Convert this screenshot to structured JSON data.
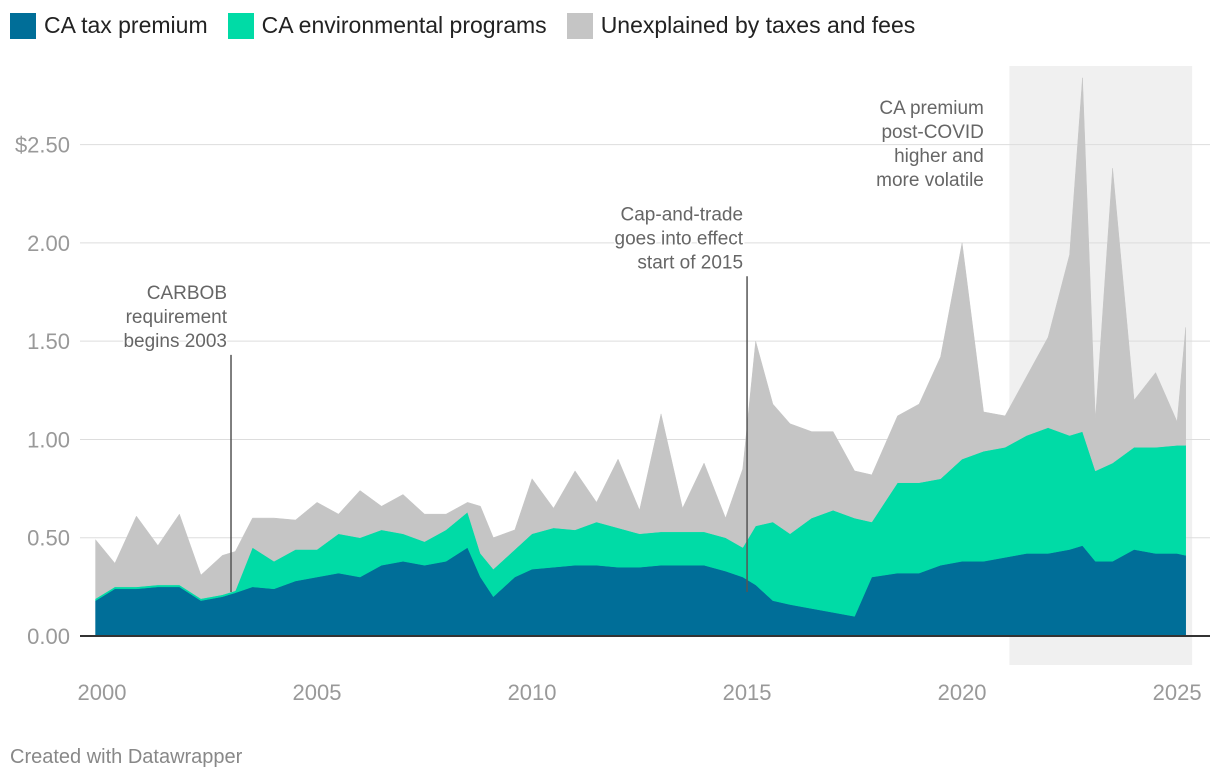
{
  "chart_data": {
    "type": "area",
    "stacked": true,
    "title": "",
    "xlabel": "",
    "ylabel": "",
    "xlim": [
      2000,
      2025.3
    ],
    "ylim": [
      0,
      2.9
    ],
    "x_ticks": [
      {
        "value": 2000,
        "label": "2000"
      },
      {
        "value": 2005,
        "label": "2005"
      },
      {
        "value": 2010,
        "label": "2010"
      },
      {
        "value": 2015,
        "label": "2015"
      },
      {
        "value": 2020,
        "label": "2020"
      },
      {
        "value": 2025,
        "label": "2025"
      }
    ],
    "y_ticks": [
      {
        "value": 0,
        "label": "0.00"
      },
      {
        "value": 0.5,
        "label": "0.50"
      },
      {
        "value": 1.0,
        "label": "1.00"
      },
      {
        "value": 1.5,
        "label": "1.50"
      },
      {
        "value": 2.0,
        "label": "2.00"
      },
      {
        "value": 2.5,
        "label": "$2.50"
      }
    ],
    "legend_position": "top-left",
    "x": [
      1999.85,
      2000.3,
      2000.8,
      2001.3,
      2001.8,
      2002.3,
      2002.8,
      2003.1,
      2003.5,
      2004.0,
      2004.5,
      2005.0,
      2005.5,
      2006.0,
      2006.5,
      2007.0,
      2007.5,
      2008.0,
      2008.5,
      2008.8,
      2009.1,
      2009.6,
      2010.0,
      2010.5,
      2011.0,
      2011.5,
      2012.0,
      2012.5,
      2013.0,
      2013.5,
      2014.0,
      2014.5,
      2014.9,
      2015.2,
      2015.6,
      2016.0,
      2016.5,
      2017.0,
      2017.5,
      2017.9,
      2018.5,
      2019.0,
      2019.5,
      2020.0,
      2020.5,
      2021.0,
      2021.5,
      2022.0,
      2022.5,
      2022.8,
      2023.1,
      2023.5,
      2024.0,
      2024.5,
      2025.0,
      2025.2
    ],
    "series": [
      {
        "name": "CA tax premium",
        "color": "#006e98",
        "values": [
          0.18,
          0.24,
          0.24,
          0.25,
          0.25,
          0.18,
          0.2,
          0.22,
          0.25,
          0.24,
          0.28,
          0.3,
          0.32,
          0.3,
          0.36,
          0.38,
          0.36,
          0.38,
          0.45,
          0.3,
          0.2,
          0.3,
          0.34,
          0.35,
          0.36,
          0.36,
          0.35,
          0.35,
          0.36,
          0.36,
          0.36,
          0.33,
          0.3,
          0.26,
          0.18,
          0.16,
          0.14,
          0.12,
          0.1,
          0.3,
          0.32,
          0.32,
          0.36,
          0.38,
          0.38,
          0.4,
          0.42,
          0.42,
          0.44,
          0.46,
          0.38,
          0.38,
          0.44,
          0.42,
          0.42,
          0.41
        ]
      },
      {
        "name": "CA environmental programs",
        "color": "#00dba6",
        "values": [
          0.01,
          0.01,
          0.01,
          0.01,
          0.01,
          0.01,
          0.01,
          0.01,
          0.2,
          0.14,
          0.16,
          0.14,
          0.2,
          0.2,
          0.18,
          0.14,
          0.12,
          0.16,
          0.18,
          0.12,
          0.14,
          0.14,
          0.18,
          0.2,
          0.18,
          0.22,
          0.2,
          0.17,
          0.17,
          0.17,
          0.17,
          0.17,
          0.15,
          0.3,
          0.4,
          0.36,
          0.46,
          0.52,
          0.5,
          0.28,
          0.46,
          0.46,
          0.44,
          0.52,
          0.56,
          0.56,
          0.6,
          0.64,
          0.58,
          0.58,
          0.46,
          0.5,
          0.52,
          0.54,
          0.55,
          0.56
        ]
      },
      {
        "name": "Unexplained by taxes and fees",
        "color": "#c5c5c5",
        "values": [
          0.3,
          0.12,
          0.36,
          0.2,
          0.36,
          0.12,
          0.2,
          0.2,
          0.15,
          0.22,
          0.15,
          0.24,
          0.1,
          0.24,
          0.12,
          0.2,
          0.14,
          0.08,
          0.05,
          0.24,
          0.16,
          0.1,
          0.28,
          0.1,
          0.3,
          0.1,
          0.35,
          0.12,
          0.6,
          0.12,
          0.35,
          0.1,
          0.4,
          0.94,
          0.6,
          0.56,
          0.44,
          0.4,
          0.24,
          0.24,
          0.34,
          0.4,
          0.62,
          1.1,
          0.2,
          0.16,
          0.3,
          0.46,
          0.92,
          1.8,
          0.26,
          1.5,
          0.24,
          0.38,
          0.12,
          0.6
        ]
      }
    ],
    "shaded_region": {
      "x_start": 2021.1,
      "x_end": 2025.35
    },
    "annotations": [
      {
        "x": 2003.0,
        "y_tip": 1.43,
        "lines": [
          "CARBOB",
          "requirement",
          "begins 2003"
        ]
      },
      {
        "x": 2015.0,
        "y_tip": 1.83,
        "lines": [
          "Cap-and-trade",
          "goes into effect",
          "start of 2015"
        ]
      },
      {
        "x": 2020.6,
        "y_tip": null,
        "lines": [
          "CA premium",
          "post-COVID",
          "higher and",
          "more volatile"
        ]
      }
    ]
  },
  "legend": [
    {
      "label": "CA tax premium",
      "color": "#006e98"
    },
    {
      "label": "CA environmental programs",
      "color": "#00dba6"
    },
    {
      "label": "Unexplained by taxes and fees",
      "color": "#c5c5c5"
    }
  ],
  "footer": "Created with Datawrapper",
  "colors": {
    "grid": "#dddddd",
    "axis": "#333333",
    "tick_label": "#999999",
    "annotation": "#555555",
    "shade": "#f0f0f0"
  }
}
